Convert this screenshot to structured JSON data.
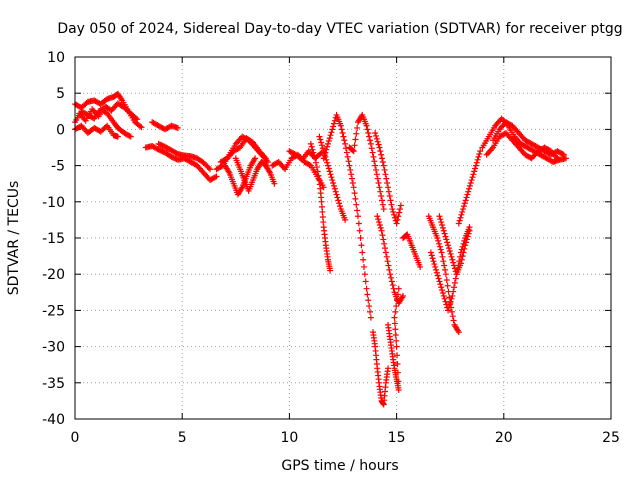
{
  "chart_data": {
    "type": "scatter",
    "title": "Day 050 of 2024, Sidereal Day-to-day VTEC variation (SDTVAR) for receiver ptgg",
    "xlabel": "GPS time / hours",
    "ylabel": "SDTVAR / TECUs",
    "xlim": [
      0,
      25
    ],
    "ylim": [
      -40,
      10
    ],
    "xticks": [
      0,
      5,
      10,
      15,
      20,
      25
    ],
    "yticks": [
      10,
      5,
      0,
      -5,
      -10,
      -15,
      -20,
      -25,
      -30,
      -35,
      -40
    ],
    "grid": true,
    "marker": "plus",
    "color": "#ff0000",
    "series": [
      {
        "name": "SDTVAR",
        "segments": [
          [
            [
              0.0,
              1.0
            ],
            [
              0.3,
              2.5
            ],
            [
              0.6,
              2.0
            ],
            [
              0.9,
              1.5
            ],
            [
              1.2,
              2.8
            ],
            [
              1.5,
              2.2
            ],
            [
              1.8,
              1.0
            ],
            [
              2.0,
              0.2
            ],
            [
              2.3,
              -0.5
            ],
            [
              2.6,
              -1.0
            ]
          ],
          [
            [
              0.0,
              3.5
            ],
            [
              0.3,
              3.0
            ],
            [
              0.6,
              3.8
            ],
            [
              0.9,
              4.0
            ],
            [
              1.2,
              3.5
            ],
            [
              1.5,
              4.2
            ],
            [
              1.8,
              4.5
            ],
            [
              2.0,
              4.9
            ],
            [
              2.2,
              4.0
            ],
            [
              2.5,
              2.5
            ],
            [
              2.8,
              1.0
            ],
            [
              3.1,
              0.3
            ]
          ],
          [
            [
              0.0,
              0.0
            ],
            [
              0.3,
              0.5
            ],
            [
              0.6,
              -0.5
            ],
            [
              0.9,
              0.2
            ],
            [
              1.2,
              -0.3
            ],
            [
              1.5,
              0.5
            ],
            [
              1.8,
              -0.8
            ],
            [
              2.0,
              -1.0
            ]
          ],
          [
            [
              0.2,
              2.2
            ],
            [
              0.5,
              1.2
            ],
            [
              0.8,
              2.8
            ],
            [
              1.1,
              1.8
            ],
            [
              1.4,
              3.2
            ],
            [
              1.7,
              2.6
            ],
            [
              2.0,
              3.6
            ],
            [
              2.3,
              3.0
            ],
            [
              2.6,
              2.2
            ],
            [
              2.9,
              1.4
            ]
          ],
          [
            [
              3.6,
              1.0
            ],
            [
              3.9,
              0.5
            ],
            [
              4.2,
              0.0
            ],
            [
              4.5,
              0.5
            ],
            [
              4.8,
              0.2
            ]
          ],
          [
            [
              3.3,
              -2.5
            ],
            [
              3.6,
              -2.3
            ],
            [
              3.9,
              -2.8
            ],
            [
              4.2,
              -3.2
            ],
            [
              4.5,
              -3.8
            ],
            [
              4.8,
              -4.2
            ],
            [
              5.1,
              -4.0
            ],
            [
              5.4,
              -4.5
            ],
            [
              5.7,
              -5.0
            ],
            [
              6.0,
              -6.0
            ],
            [
              6.3,
              -7.0
            ],
            [
              6.6,
              -6.5
            ]
          ],
          [
            [
              3.9,
              -2.0
            ],
            [
              4.2,
              -2.4
            ],
            [
              4.5,
              -2.9
            ],
            [
              4.8,
              -3.4
            ],
            [
              5.1,
              -3.6
            ],
            [
              5.4,
              -3.7
            ],
            [
              5.7,
              -4.0
            ],
            [
              6.0,
              -4.6
            ],
            [
              6.3,
              -5.5
            ]
          ],
          [
            [
              6.6,
              -5.5
            ],
            [
              6.9,
              -5.0
            ],
            [
              7.2,
              -3.5
            ],
            [
              7.5,
              -2.0
            ],
            [
              7.8,
              -1.0
            ],
            [
              8.1,
              -1.5
            ],
            [
              8.4,
              -2.5
            ],
            [
              8.7,
              -3.5
            ],
            [
              9.0,
              -4.5
            ]
          ],
          [
            [
              6.8,
              -4.5
            ],
            [
              7.1,
              -4.0
            ],
            [
              7.4,
              -3.0
            ],
            [
              7.7,
              -2.5
            ],
            [
              8.0,
              -1.2
            ],
            [
              8.3,
              -1.8
            ],
            [
              8.6,
              -3.0
            ],
            [
              8.9,
              -4.0
            ]
          ],
          [
            [
              7.0,
              -5.0
            ],
            [
              7.2,
              -6.0
            ],
            [
              7.4,
              -7.5
            ],
            [
              7.6,
              -9.0
            ],
            [
              7.8,
              -8.0
            ],
            [
              8.0,
              -6.5
            ],
            [
              8.2,
              -5.0
            ],
            [
              8.4,
              -4.0
            ]
          ],
          [
            [
              7.5,
              -4.0
            ],
            [
              7.7,
              -5.5
            ],
            [
              7.9,
              -7.0
            ],
            [
              8.1,
              -8.5
            ],
            [
              8.3,
              -7.0
            ],
            [
              8.5,
              -5.5
            ],
            [
              8.7,
              -4.5
            ],
            [
              8.9,
              -5.0
            ],
            [
              9.1,
              -6.0
            ],
            [
              9.3,
              -7.5
            ]
          ],
          [
            [
              9.2,
              -5.0
            ],
            [
              9.5,
              -4.5
            ],
            [
              9.8,
              -5.5
            ],
            [
              10.1,
              -4.0
            ],
            [
              10.4,
              -3.5
            ],
            [
              10.7,
              -4.5
            ],
            [
              11.0,
              -5.0
            ],
            [
              11.3,
              -6.5
            ],
            [
              11.6,
              -8.0
            ]
          ],
          [
            [
              10.0,
              -3.0
            ],
            [
              10.3,
              -3.5
            ],
            [
              10.6,
              -4.2
            ],
            [
              10.9,
              -3.0
            ],
            [
              11.2,
              -4.0
            ],
            [
              11.5,
              -3.2
            ]
          ],
          [
            [
              11.0,
              -2.0
            ],
            [
              11.2,
              -4.0
            ],
            [
              11.4,
              -7.0
            ],
            [
              11.5,
              -10.0
            ],
            [
              11.6,
              -13.5
            ],
            [
              11.7,
              -16.0
            ],
            [
              11.8,
              -18.0
            ],
            [
              11.9,
              -19.5
            ]
          ],
          [
            [
              11.4,
              -1.0
            ],
            [
              11.6,
              -3.0
            ],
            [
              11.8,
              -5.0
            ],
            [
              12.0,
              -7.0
            ],
            [
              12.2,
              -9.0
            ],
            [
              12.4,
              -11.0
            ],
            [
              12.6,
              -12.5
            ]
          ],
          [
            [
              11.6,
              -4.0
            ],
            [
              11.8,
              -2.0
            ],
            [
              12.0,
              0.0
            ],
            [
              12.2,
              2.0
            ],
            [
              12.4,
              0.5
            ],
            [
              12.6,
              -2.0
            ],
            [
              12.8,
              -5.0
            ],
            [
              13.0,
              -8.0
            ],
            [
              13.2,
              -12.0
            ],
            [
              13.4,
              -17.0
            ],
            [
              13.6,
              -22.0
            ],
            [
              13.8,
              -26.0
            ]
          ],
          [
            [
              12.8,
              -2.5
            ],
            [
              13.0,
              -3.0
            ],
            [
              13.2,
              1.0
            ],
            [
              13.4,
              2.0
            ],
            [
              13.6,
              0.5
            ],
            [
              13.8,
              -2.0
            ],
            [
              14.0,
              -5.0
            ],
            [
              14.2,
              -8.0
            ],
            [
              14.4,
              -11.0
            ]
          ],
          [
            [
              13.9,
              -28.0
            ],
            [
              14.0,
              -30.0
            ],
            [
              14.1,
              -33.0
            ],
            [
              14.2,
              -35.5
            ],
            [
              14.3,
              -37.5
            ],
            [
              14.4,
              -38.0
            ],
            [
              14.5,
              -35.0
            ],
            [
              14.6,
              -33.0
            ]
          ],
          [
            [
              14.0,
              -0.5
            ],
            [
              14.2,
              -2.5
            ],
            [
              14.4,
              -5.0
            ],
            [
              14.6,
              -8.0
            ],
            [
              14.8,
              -11.0
            ],
            [
              15.0,
              -13.0
            ],
            [
              15.2,
              -10.5
            ]
          ],
          [
            [
              14.1,
              -12.0
            ],
            [
              14.3,
              -14.0
            ],
            [
              14.5,
              -17.0
            ],
            [
              14.7,
              -20.0
            ],
            [
              14.9,
              -22.5
            ],
            [
              15.1,
              -24.0
            ],
            [
              15.3,
              -23.0
            ]
          ],
          [
            [
              14.6,
              -27.0
            ],
            [
              14.7,
              -29.0
            ],
            [
              14.8,
              -31.0
            ],
            [
              14.9,
              -33.0
            ],
            [
              15.0,
              -34.5
            ],
            [
              15.1,
              -36.0
            ],
            [
              15.0,
              -30.0
            ],
            [
              14.9,
              -26.0
            ],
            [
              15.1,
              -22.0
            ]
          ],
          [
            [
              15.3,
              -15.0
            ],
            [
              15.5,
              -14.5
            ],
            [
              15.7,
              -16.0
            ],
            [
              15.9,
              -17.5
            ],
            [
              16.1,
              -19.0
            ]
          ],
          [
            [
              16.5,
              -12.0
            ],
            [
              16.7,
              -13.5
            ],
            [
              16.9,
              -15.0
            ],
            [
              17.1,
              -17.0
            ],
            [
              17.3,
              -20.0
            ],
            [
              17.5,
              -24.0
            ],
            [
              17.7,
              -27.0
            ],
            [
              17.9,
              -28.0
            ]
          ],
          [
            [
              16.6,
              -17.0
            ],
            [
              16.8,
              -19.0
            ],
            [
              17.0,
              -21.0
            ],
            [
              17.2,
              -23.0
            ],
            [
              17.4,
              -25.0
            ],
            [
              17.6,
              -23.0
            ],
            [
              17.8,
              -20.0
            ],
            [
              18.0,
              -17.0
            ],
            [
              18.2,
              -15.0
            ],
            [
              18.4,
              -13.5
            ]
          ],
          [
            [
              17.0,
              -12.0
            ],
            [
              17.2,
              -14.0
            ],
            [
              17.4,
              -16.0
            ],
            [
              17.6,
              -18.0
            ],
            [
              17.8,
              -20.0
            ],
            [
              18.0,
              -18.5
            ],
            [
              18.2,
              -16.0
            ],
            [
              18.4,
              -14.0
            ]
          ],
          [
            [
              17.9,
              -13.0
            ],
            [
              18.1,
              -11.0
            ],
            [
              18.3,
              -9.0
            ],
            [
              18.5,
              -7.0
            ],
            [
              18.7,
              -5.0
            ],
            [
              18.9,
              -3.0
            ]
          ],
          [
            [
              19.0,
              -2.5
            ],
            [
              19.3,
              -1.0
            ],
            [
              19.6,
              0.5
            ],
            [
              19.9,
              1.5
            ],
            [
              20.2,
              0.5
            ],
            [
              20.5,
              -1.0
            ],
            [
              20.8,
              -2.0
            ],
            [
              21.1,
              -2.5
            ],
            [
              21.4,
              -3.0
            ],
            [
              21.7,
              -3.5
            ],
            [
              22.0,
              -4.0
            ],
            [
              22.3,
              -4.5
            ],
            [
              22.6,
              -4.2
            ],
            [
              22.9,
              -4.0
            ]
          ],
          [
            [
              19.5,
              -1.5
            ],
            [
              19.8,
              0.0
            ],
            [
              20.1,
              1.0
            ],
            [
              20.4,
              0.5
            ],
            [
              20.7,
              -0.5
            ],
            [
              21.0,
              -1.5
            ],
            [
              21.3,
              -2.0
            ],
            [
              21.6,
              -2.5
            ],
            [
              21.9,
              -3.0
            ],
            [
              22.2,
              -3.5
            ],
            [
              22.5,
              -3.0
            ],
            [
              22.8,
              -3.5
            ]
          ],
          [
            [
              19.2,
              -3.5
            ],
            [
              19.5,
              -2.5
            ],
            [
              19.8,
              -1.0
            ],
            [
              20.1,
              -0.5
            ],
            [
              20.4,
              -1.5
            ],
            [
              20.7,
              -2.5
            ],
            [
              21.0,
              -3.5
            ],
            [
              21.3,
              -4.0
            ],
            [
              21.6,
              -3.0
            ],
            [
              21.9,
              -2.5
            ],
            [
              22.2,
              -3.0
            ],
            [
              22.5,
              -4.0
            ]
          ]
        ]
      }
    ]
  }
}
